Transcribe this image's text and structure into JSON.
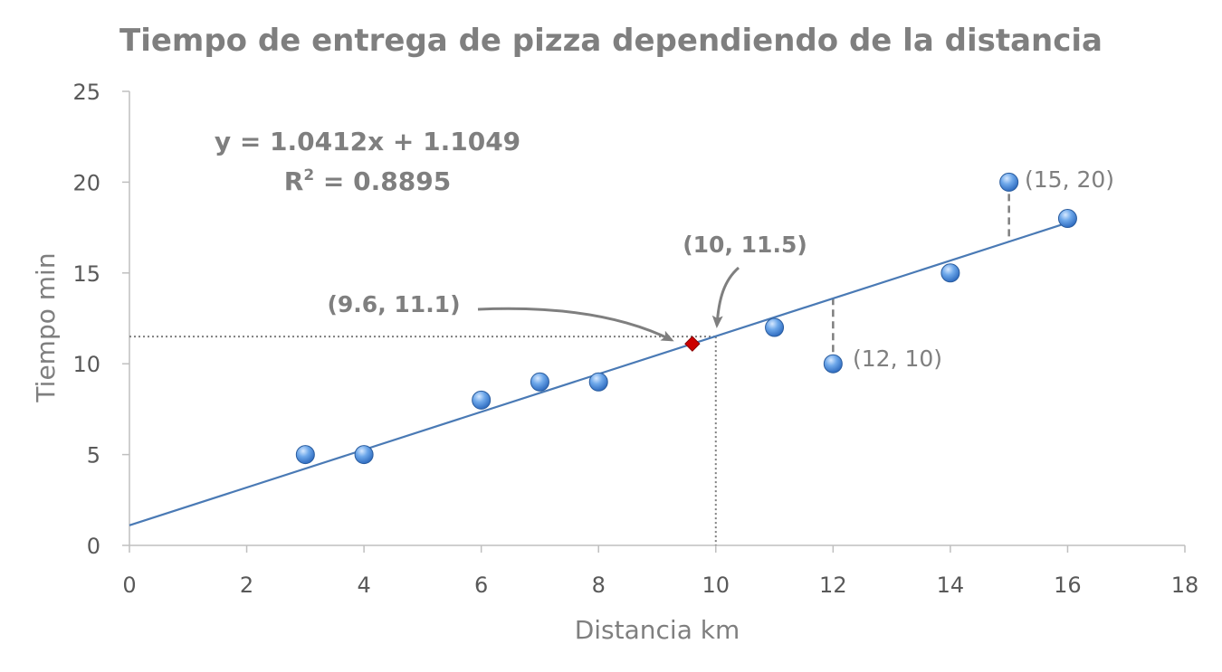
{
  "chart_data": {
    "type": "scatter",
    "title": "Tiempo de entrega de pizza dependiendo de la distancia",
    "xlabel": "Distancia km",
    "ylabel": "Tiempo min",
    "xlim": [
      0,
      18
    ],
    "ylim": [
      0,
      25
    ],
    "x_ticks": [
      0,
      2,
      4,
      6,
      8,
      10,
      12,
      14,
      16,
      18
    ],
    "y_ticks": [
      0,
      5,
      10,
      15,
      20,
      25
    ],
    "grid": false,
    "series": [
      {
        "points": [
          {
            "x": 3,
            "y": 5
          },
          {
            "x": 4,
            "y": 5
          },
          {
            "x": 6,
            "y": 8
          },
          {
            "x": 7,
            "y": 9
          },
          {
            "x": 8,
            "y": 9
          },
          {
            "x": 11,
            "y": 12
          },
          {
            "x": 12,
            "y": 10
          },
          {
            "x": 14,
            "y": 15
          },
          {
            "x": 15,
            "y": 20
          },
          {
            "x": 16,
            "y": 18
          }
        ],
        "color": "#4f8fd6"
      }
    ],
    "highlight_point": {
      "x": 9.6,
      "y": 11.1,
      "color": "#cc0000",
      "label": "(9.6, 11.1)"
    },
    "trendline": {
      "slope": 1.0412,
      "intercept": 1.1049,
      "x_range": [
        0,
        16
      ],
      "color": "#4a7ab5",
      "equation": "y = 1.0412x + 1.1049",
      "r2_label": "R",
      "r2_sup": "2",
      "r2_value": " = 0.8895"
    },
    "reference_point": {
      "x": 10,
      "y": 11.5,
      "label": "(10, 11.5)"
    },
    "point_labels": [
      {
        "x": 12,
        "y": 10,
        "label": "(12, 10)"
      },
      {
        "x": 15,
        "y": 20,
        "label": "(15, 20)"
      }
    ],
    "residuals": [
      {
        "x": 12,
        "y_from": 10,
        "y_to": 13.6
      },
      {
        "x": 15,
        "y_from": 20,
        "y_to": 16.7
      }
    ]
  }
}
